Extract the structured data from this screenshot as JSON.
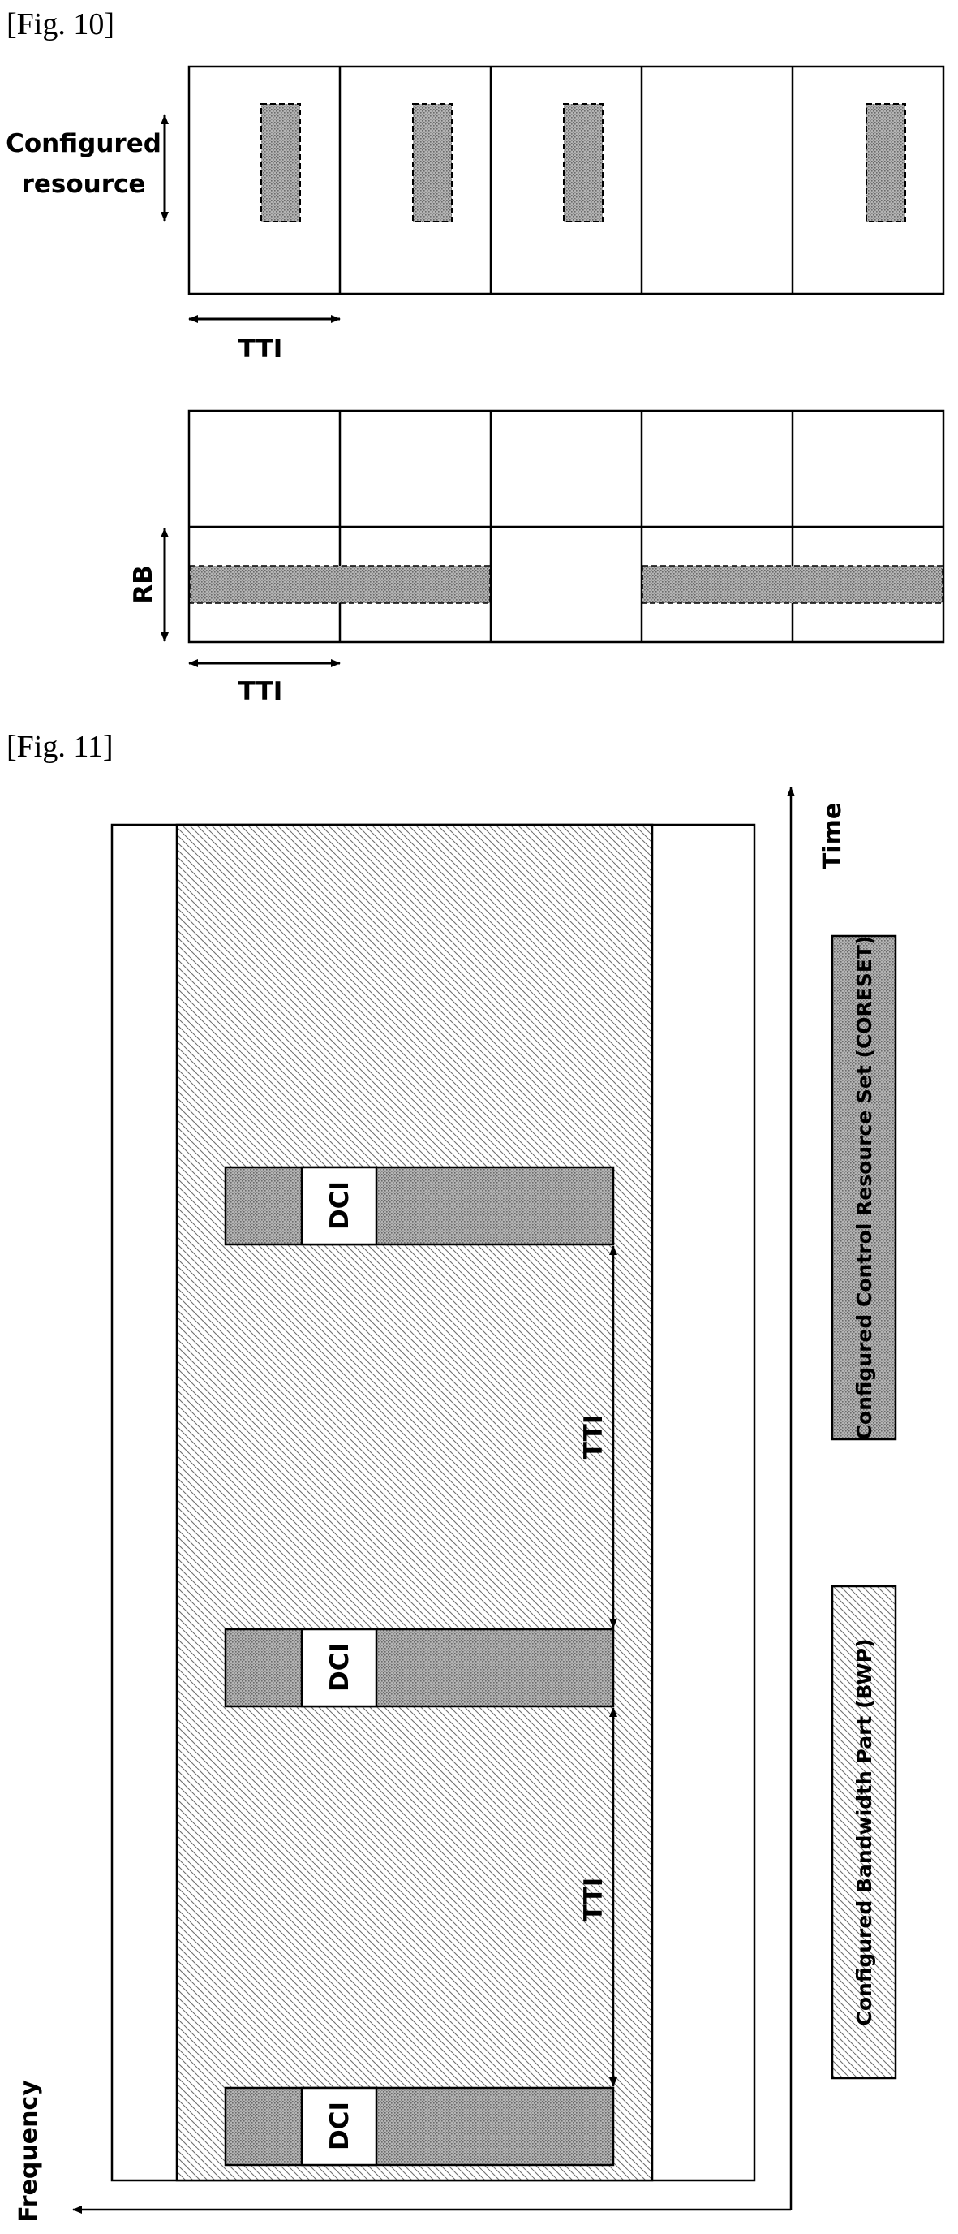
{
  "figure10": {
    "caption": "[Fig. 10]",
    "top_panel": {
      "resource_label_line1": "Configured",
      "resource_label_line2": "resource",
      "tti_label": "TTI"
    },
    "bottom_panel": {
      "rb_label": "RB",
      "tti_label": "TTI"
    }
  },
  "figure11": {
    "caption": "[Fig. 11]",
    "time_axis_label": "Time",
    "frequency_axis_label": "Frequency",
    "dci_label": "DCI",
    "tti_label": "TTI",
    "legend": {
      "coreset": "Configured Control Resource Set (CORESET)",
      "bwp": "Configured Bandwidth Part (BWP)"
    }
  },
  "colors": {
    "ink": "#000000",
    "shaded_fill": "#a8a8a8",
    "background": "#ffffff"
  }
}
